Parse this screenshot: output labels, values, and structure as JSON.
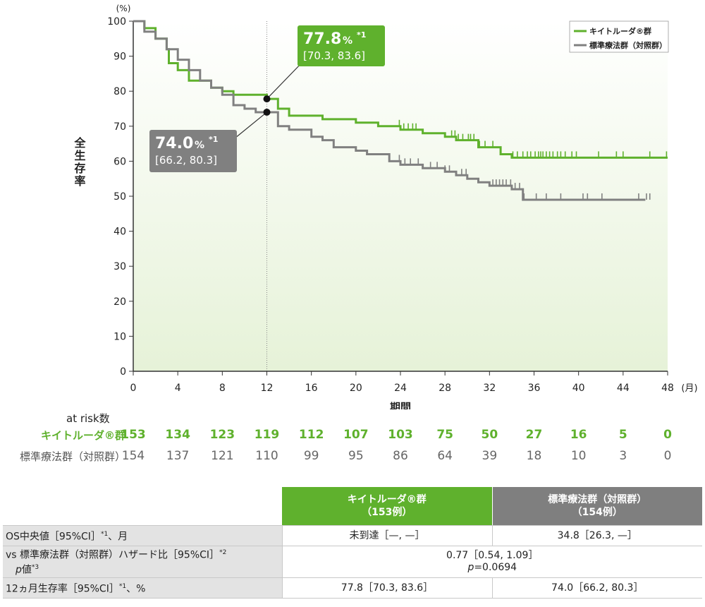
{
  "chart_data": {
    "type": "line",
    "step": true,
    "xlabel": "期間",
    "x_unit": "(月)",
    "ylabel": "全生存率",
    "y_unit": "(%)",
    "xlim": [
      0,
      48
    ],
    "ylim": [
      0,
      100
    ],
    "xticks": [
      0,
      4,
      8,
      12,
      16,
      20,
      24,
      28,
      32,
      36,
      40,
      44,
      48
    ],
    "yticks": [
      0,
      10,
      20,
      30,
      40,
      50,
      60,
      70,
      80,
      90,
      100
    ],
    "reference_x": 12,
    "legend_position": "top-right",
    "series": [
      {
        "name": "キイトルーダ®群",
        "color": "#5fb12d",
        "points": [
          [
            0,
            100
          ],
          [
            1,
            98
          ],
          [
            2,
            95
          ],
          [
            3,
            92
          ],
          [
            3.2,
            88
          ],
          [
            4,
            86
          ],
          [
            5,
            83
          ],
          [
            7,
            81
          ],
          [
            8,
            80
          ],
          [
            9,
            79
          ],
          [
            11,
            79
          ],
          [
            12,
            77.8
          ],
          [
            13,
            75
          ],
          [
            14,
            73
          ],
          [
            17,
            72
          ],
          [
            20,
            71
          ],
          [
            22,
            70
          ],
          [
            24,
            69
          ],
          [
            26,
            68
          ],
          [
            28,
            67
          ],
          [
            29,
            66
          ],
          [
            31,
            64
          ],
          [
            33,
            62
          ],
          [
            34,
            61
          ],
          [
            46,
            61
          ],
          [
            48,
            61
          ]
        ],
        "censor_x": [
          23.9,
          24.3,
          24.7,
          25.1,
          25.4,
          28.6,
          28.9,
          29.2,
          29.6,
          30.1,
          30.3,
          30.6,
          31.1,
          31.6,
          32.3,
          34.1,
          34.5,
          35.0,
          35.4,
          35.7,
          36.1,
          36.4,
          36.6,
          36.8,
          37.1,
          37.4,
          37.7,
          38.1,
          38.4,
          38.8,
          39.4,
          39.8,
          41.8,
          43.4,
          44.0,
          46.4,
          47.9
        ]
      },
      {
        "name": "標準療法群（対照群）",
        "color": "#808080",
        "points": [
          [
            0,
            100
          ],
          [
            1,
            97
          ],
          [
            2,
            95
          ],
          [
            3,
            92
          ],
          [
            4,
            89
          ],
          [
            5,
            86
          ],
          [
            6,
            83
          ],
          [
            7,
            81
          ],
          [
            8,
            79
          ],
          [
            9,
            76
          ],
          [
            10,
            75
          ],
          [
            11,
            74
          ],
          [
            12,
            74.0
          ],
          [
            13,
            70
          ],
          [
            14,
            69
          ],
          [
            16,
            67
          ],
          [
            17,
            66
          ],
          [
            18,
            64
          ],
          [
            20,
            63
          ],
          [
            21,
            62
          ],
          [
            23,
            60
          ],
          [
            24,
            59
          ],
          [
            26,
            58
          ],
          [
            28,
            57
          ],
          [
            29,
            56
          ],
          [
            30,
            55
          ],
          [
            31,
            54
          ],
          [
            32,
            53
          ],
          [
            34,
            52
          ],
          [
            35,
            49
          ],
          [
            46,
            49
          ]
        ],
        "censor_x": [
          23.9,
          24.4,
          24.9,
          25.6,
          26.7,
          27.3,
          28.0,
          28.4,
          29.5,
          29.9,
          32.3,
          32.6,
          32.9,
          33.2,
          33.5,
          33.9,
          34.3,
          34.7,
          35.1,
          36.2,
          37.1,
          38.4,
          40.4,
          40.8,
          42.1,
          45.4,
          46.1,
          46.4
        ]
      }
    ],
    "annotations": [
      {
        "series": 0,
        "x": 12,
        "y": 77.8,
        "value": "77.8",
        "unit": "%",
        "note": "*1",
        "ci": "[70.3, 83.6]",
        "color": "#5fb12d"
      },
      {
        "series": 1,
        "x": 12,
        "y": 74.0,
        "value": "74.0",
        "unit": "%",
        "note": "*1",
        "ci": "[66.2, 80.3]",
        "color": "#808080"
      }
    ]
  },
  "risk_table": {
    "title": "at risk数",
    "times": [
      0,
      4,
      8,
      12,
      16,
      20,
      24,
      28,
      32,
      36,
      40,
      44,
      48
    ],
    "rows": [
      {
        "label": "キイトルーダ®群",
        "values": [
          "153",
          "134",
          "123",
          "119",
          "112",
          "107",
          "103",
          "75",
          "50",
          "27",
          "16",
          "5",
          "0"
        ]
      },
      {
        "label": "標準療法群（対照群）",
        "values": [
          "154",
          "137",
          "121",
          "110",
          "99",
          "95",
          "86",
          "64",
          "39",
          "18",
          "10",
          "3",
          "0"
        ]
      }
    ]
  },
  "summary_table": {
    "header_k_name": "キイトルーダ®群",
    "header_k_n": "（153例）",
    "header_s_name": "標準療法群（対照群）",
    "header_s_n": "（154例）",
    "row1_label": "OS中央値［95%CI］",
    "row1_note": "*1",
    "row1_unit": "、月",
    "row1_k": "未到達［—, —］",
    "row1_s": "34.8［26.3, —］",
    "row2_label": "vs 標準療法群（対照群）ハザード比［95%CI］",
    "row2_note": "*2",
    "row2_label2_p": "p",
    "row2_label2_rest": "値",
    "row2_note2": "*3",
    "row2_hr": "0.77［0.54, 1.09］",
    "row2_p_symbol": "p",
    "row2_p_value": "=0.0694",
    "row3_label": "12ヵ月生存率［95%CI］",
    "row3_note": "*1",
    "row3_unit": "、%",
    "row3_k": "77.8［70.3, 83.6］",
    "row3_s": "74.0［66.2, 80.3］"
  }
}
